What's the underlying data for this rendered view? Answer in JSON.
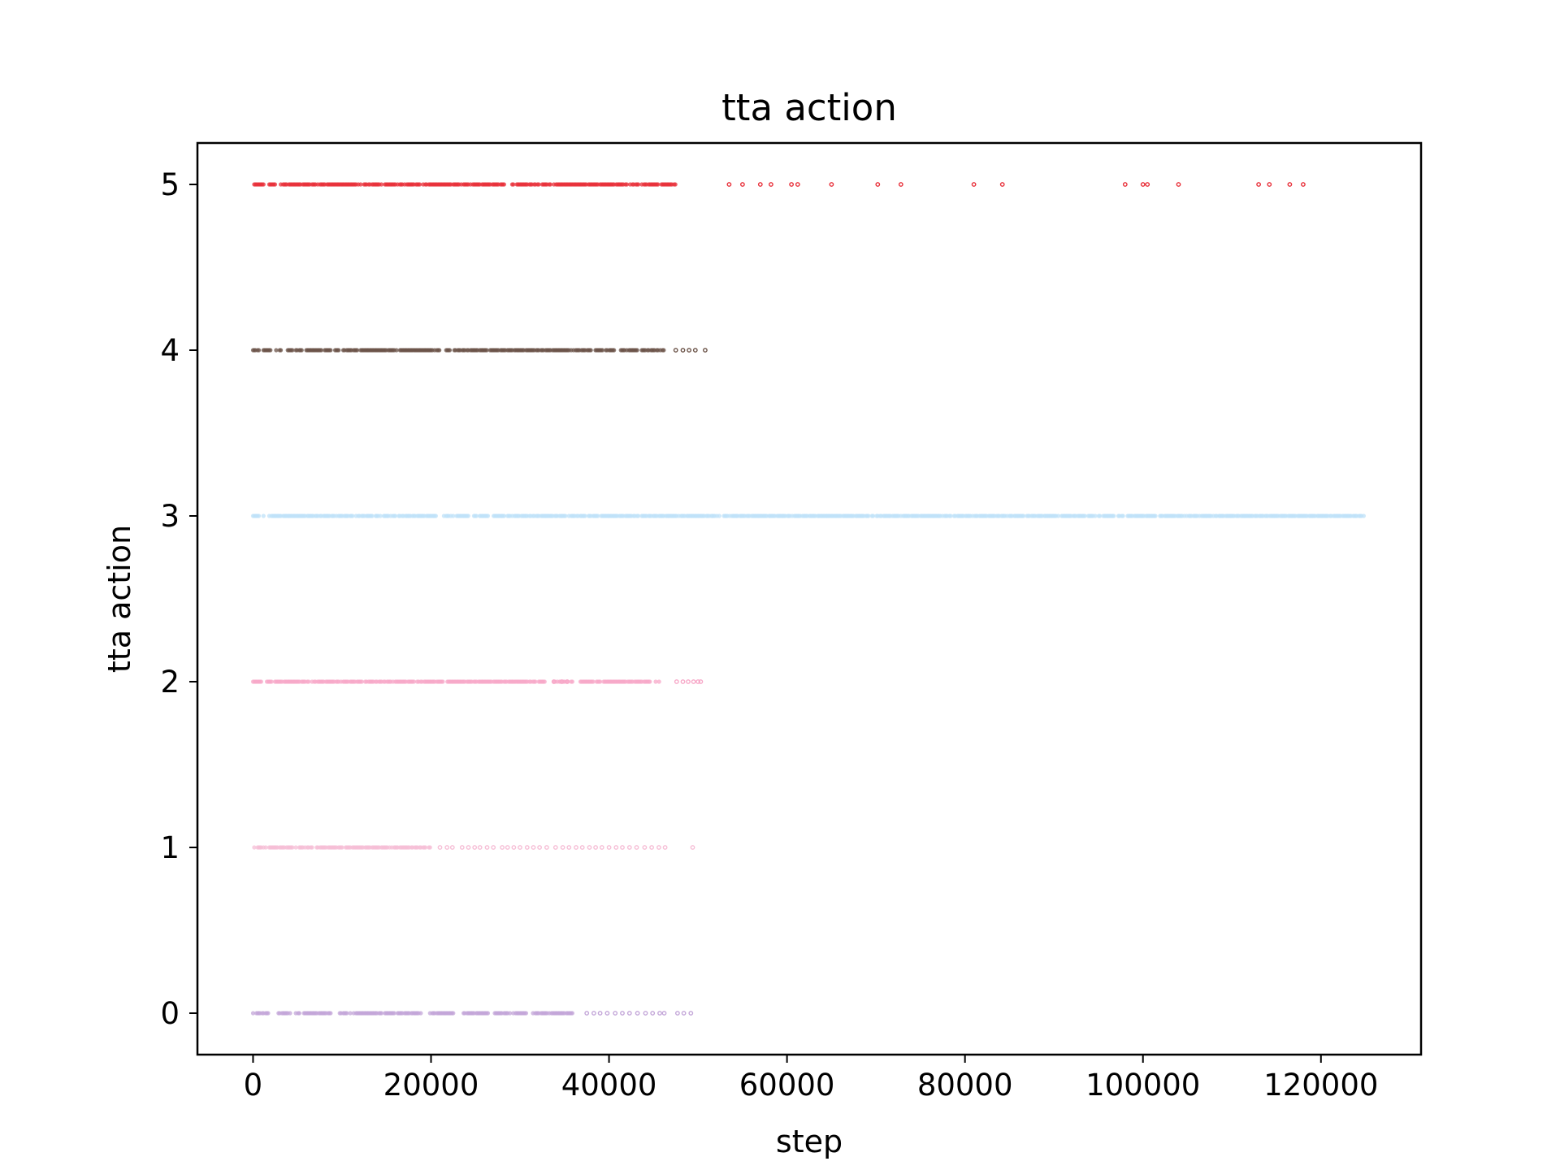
{
  "chart_data": {
    "type": "scatter",
    "title": "tta action",
    "xlabel": "step",
    "ylabel": "tta action",
    "xlim": [
      -6250,
      131250
    ],
    "ylim": [
      -0.25,
      5.25
    ],
    "xticks": [
      0,
      20000,
      40000,
      60000,
      80000,
      100000,
      120000
    ],
    "xtick_labels": [
      "0",
      "20000",
      "40000",
      "60000",
      "80000",
      "100000",
      "120000"
    ],
    "yticks": [
      0,
      1,
      2,
      3,
      4,
      5
    ],
    "ytick_labels": [
      "0",
      "1",
      "2",
      "3",
      "4",
      "5"
    ],
    "grid": false,
    "legend": "none",
    "series": [
      {
        "y": 5,
        "color": "#e8303a",
        "dense_range": [
          0,
          47500
        ],
        "gaps": [
          [
            1200,
            1800
          ],
          [
            2600,
            3100
          ]
        ],
        "sparse_x": [
          53500,
          55000,
          57000,
          58200,
          60500,
          61200,
          65000,
          70200,
          72800,
          81000,
          84200,
          98000,
          100000,
          100500,
          104000,
          113000,
          114200,
          116500,
          118000
        ]
      },
      {
        "y": 4,
        "color": "#6b5348",
        "dense_range": [
          0,
          46200
        ],
        "gaps": [
          [
            700,
            1100
          ],
          [
            2100,
            2500
          ],
          [
            3500,
            3800
          ],
          [
            21000,
            21600
          ],
          [
            40600,
            41100
          ]
        ],
        "sparse_x": [
          47500,
          48300,
          49000,
          49700,
          50800
        ]
      },
      {
        "y": 3,
        "color": "#bfe2f8",
        "dense_range": [
          0,
          125000
        ],
        "gaps": [
          [
            700,
            1100
          ],
          [
            20800,
            21400
          ],
          [
            26600,
            27000
          ]
        ],
        "sparse_x": []
      },
      {
        "y": 2,
        "color": "#f7a8c8",
        "dense_range": [
          0,
          45800
        ],
        "gaps": [
          [
            1000,
            1500
          ],
          [
            33000,
            33700
          ],
          [
            36000,
            36600
          ]
        ],
        "sparse_x": [
          33800,
          34700,
          35300,
          47600,
          48300,
          48900,
          49500,
          50000,
          50300
        ]
      },
      {
        "y": 1,
        "color": "#f6bed6",
        "dense_range": [
          0,
          20000
        ],
        "gaps": [
          [
            200,
            500
          ]
        ],
        "sparse_x": [
          21000,
          21800,
          22400,
          23500,
          24200,
          24900,
          25500,
          26300,
          27000,
          28000,
          28600,
          29300,
          30000,
          30800,
          31500,
          32200,
          33000,
          34000,
          34800,
          35500,
          36300,
          37000,
          37800,
          38500,
          39200,
          40000,
          40800,
          41500,
          42300,
          43100,
          44000,
          44800,
          45600,
          46300,
          49400
        ]
      },
      {
        "y": 0,
        "color": "#c3a6d8",
        "dense_range": [
          0,
          36000
        ],
        "gaps": [
          [
            1800,
            2600
          ],
          [
            4200,
            4700
          ],
          [
            8800,
            9600
          ],
          [
            19000,
            19800
          ],
          [
            22500,
            23500
          ],
          [
            26400,
            27100
          ],
          [
            30800,
            31400
          ]
        ],
        "sparse_x": [
          37500,
          38300,
          39000,
          39800,
          40700,
          41500,
          42300,
          43200,
          44100,
          44900,
          45700,
          46200,
          47700,
          48400,
          49200
        ]
      }
    ]
  }
}
